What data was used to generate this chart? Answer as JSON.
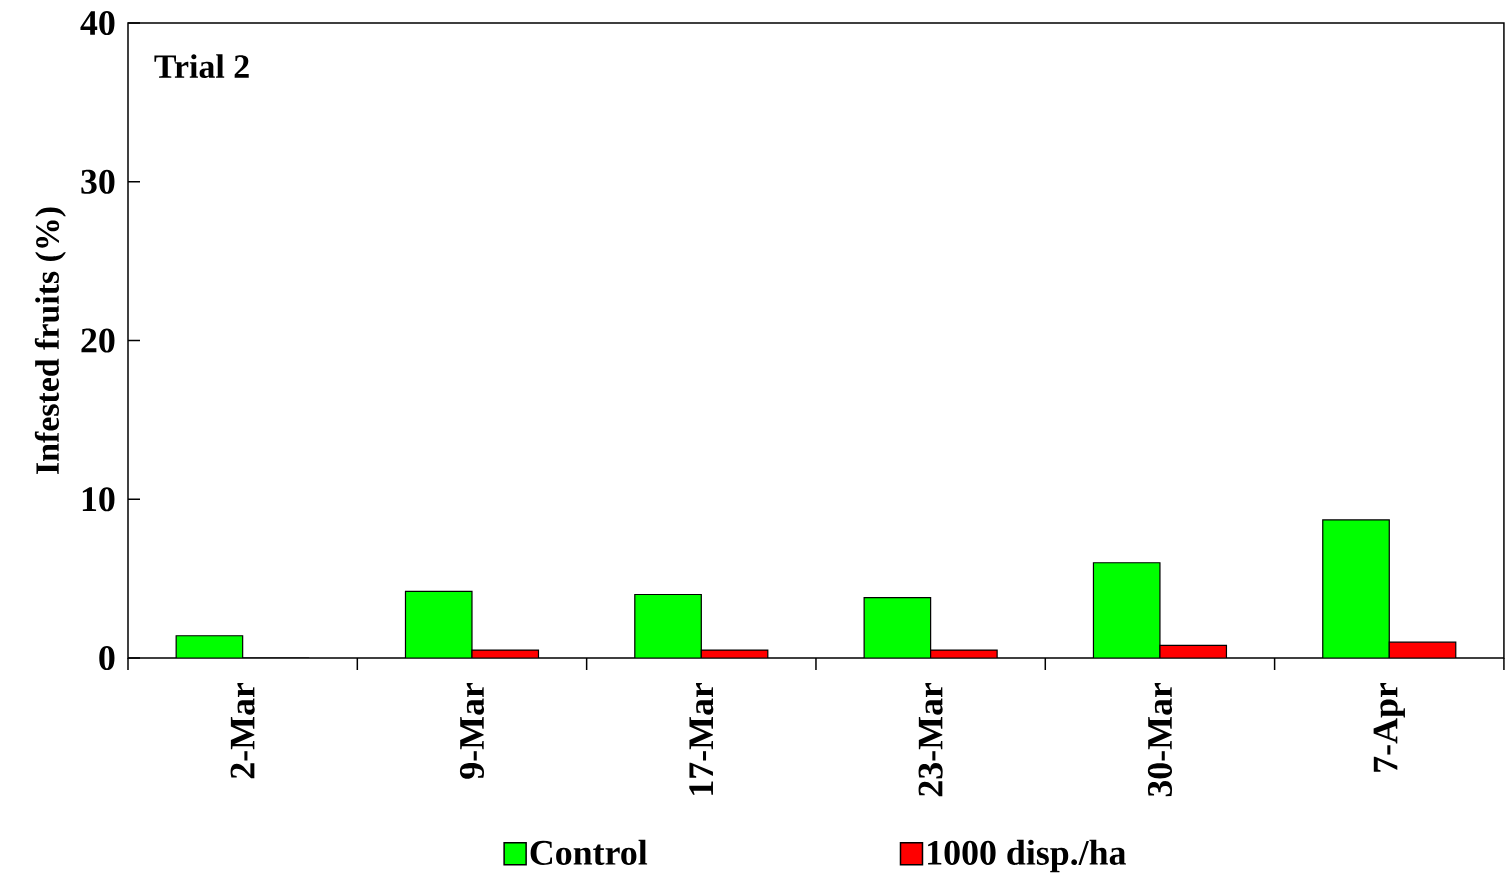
{
  "chart_data": {
    "type": "bar",
    "title": "Trial 2",
    "ylabel": "Infested fruits (%)",
    "categories": [
      "2-Mar",
      "9-Mar",
      "17-Mar",
      "23-Mar",
      "30-Mar",
      "7-Apr"
    ],
    "series": [
      {
        "name": "Control",
        "color": "#00ff00",
        "values": [
          1.4,
          4.2,
          4.0,
          3.8,
          6.0,
          8.7
        ]
      },
      {
        "name": "1000 disp./ha",
        "color": "#ff0000",
        "values": [
          0,
          0.5,
          0.5,
          0.5,
          0.8,
          1.0
        ]
      }
    ],
    "ylim": [
      0,
      40
    ],
    "yticks": [
      0,
      10,
      20,
      30,
      40
    ],
    "grid": false,
    "legend": "bottom"
  }
}
